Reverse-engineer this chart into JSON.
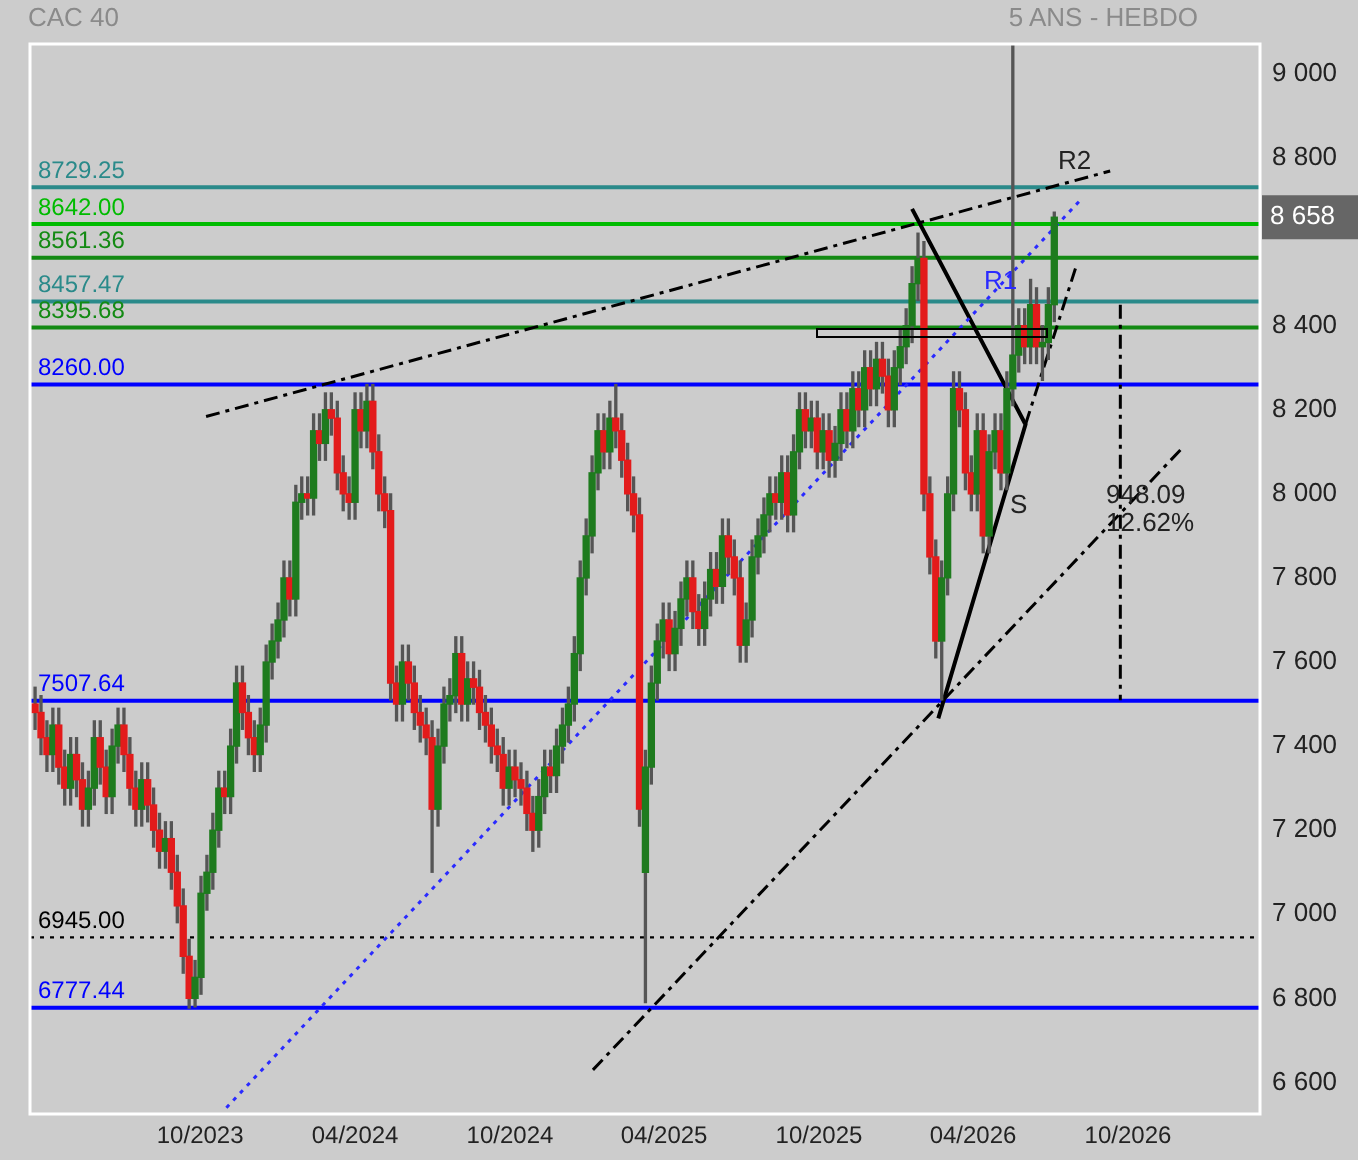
{
  "chart_data": {
    "type": "candlestick",
    "title": "CAC 40",
    "subtitle": "5 ANS - HEBDO",
    "xlim": [
      "2023-03-14",
      "2027-03-06"
    ],
    "xticks": [
      {
        "value": "2023-10",
        "label": "10/2023"
      },
      {
        "value": "2024-04",
        "label": "04/2024"
      },
      {
        "value": "2024-10",
        "label": "10/2024"
      },
      {
        "value": "2025-04",
        "label": "04/2025"
      },
      {
        "value": "2025-10",
        "label": "10/2025"
      },
      {
        "value": "2026-04",
        "label": "04/2026"
      },
      {
        "value": "2026-10",
        "label": "10/2026"
      }
    ],
    "ylim": [
      6525,
      9070
    ],
    "yticks": [
      {
        "value": 6600,
        "label": "6 600"
      },
      {
        "value": 6800,
        "label": "6 800"
      },
      {
        "value": 7000,
        "label": "7 000"
      },
      {
        "value": 7200,
        "label": "7 200"
      },
      {
        "value": 7400,
        "label": "7 400"
      },
      {
        "value": 7600,
        "label": "7 600"
      },
      {
        "value": 7800,
        "label": "7 800"
      },
      {
        "value": 8000,
        "label": "8 000"
      },
      {
        "value": 8200,
        "label": "8 200"
      },
      {
        "value": 8400,
        "label": "8 400"
      },
      {
        "value": 8800,
        "label": "8 800"
      },
      {
        "value": 9000,
        "label": "9 000"
      }
    ],
    "series": [
      {
        "type": "candlestick",
        "x": [
          "2023-03-20",
          "2023-03-27",
          "2023-04-03",
          "2023-04-10",
          "2023-04-17",
          "2023-04-24",
          "2023-05-01",
          "2023-05-08",
          "2023-05-15",
          "2023-05-22",
          "2023-05-29",
          "2023-06-05",
          "2023-06-12",
          "2023-06-19",
          "2023-06-26",
          "2023-07-03",
          "2023-07-10",
          "2023-07-17",
          "2023-07-24",
          "2023-07-31",
          "2023-08-07",
          "2023-08-14",
          "2023-08-21",
          "2023-08-28",
          "2023-09-04",
          "2023-09-11",
          "2023-09-18",
          "2023-09-25",
          "2023-10-02",
          "2023-10-09",
          "2023-10-16",
          "2023-10-23",
          "2023-10-30",
          "2023-11-06",
          "2023-11-13",
          "2023-11-20",
          "2023-11-27",
          "2023-12-04",
          "2023-12-11",
          "2023-12-18",
          "2023-12-25",
          "2024-01-01",
          "2024-01-08",
          "2024-01-15",
          "2024-01-22",
          "2024-01-29",
          "2024-02-05",
          "2024-02-12",
          "2024-02-19",
          "2024-02-26",
          "2024-03-04",
          "2024-03-11",
          "2024-03-18",
          "2024-03-25",
          "2024-04-01",
          "2024-04-08",
          "2024-04-15",
          "2024-04-22",
          "2024-04-29",
          "2024-05-06",
          "2024-05-13",
          "2024-05-20",
          "2024-05-27",
          "2024-06-03",
          "2024-06-10",
          "2024-06-17",
          "2024-06-24",
          "2024-07-01",
          "2024-07-08",
          "2024-07-15",
          "2024-07-22",
          "2024-07-29",
          "2024-08-05",
          "2024-08-12",
          "2024-08-19",
          "2024-08-26",
          "2024-09-02",
          "2024-09-09",
          "2024-09-16",
          "2024-09-23",
          "2024-09-30",
          "2024-10-07",
          "2024-10-14",
          "2024-10-21",
          "2024-10-28",
          "2024-11-04",
          "2024-11-11",
          "2024-11-18",
          "2024-11-25",
          "2024-12-02",
          "2024-12-09",
          "2024-12-16",
          "2024-12-23",
          "2024-12-30",
          "2025-01-06",
          "2025-01-13",
          "2025-01-20",
          "2025-01-27",
          "2025-02-03",
          "2025-02-10",
          "2025-02-17",
          "2025-02-24",
          "2025-03-03",
          "2025-03-10",
          "2025-03-17",
          "2025-03-24",
          "2025-03-31",
          "2025-04-07",
          "2025-04-14",
          "2025-04-21",
          "2025-04-28",
          "2025-05-05",
          "2025-05-12",
          "2025-05-19",
          "2025-05-26",
          "2025-06-02",
          "2025-06-09",
          "2025-06-16",
          "2025-06-23",
          "2025-06-30",
          "2025-07-07",
          "2025-07-14",
          "2025-07-21",
          "2025-07-28",
          "2025-08-04",
          "2025-08-11",
          "2025-08-18",
          "2025-08-25",
          "2025-09-01",
          "2025-09-08",
          "2025-09-15",
          "2025-09-22",
          "2025-09-29",
          "2025-10-06",
          "2025-10-13",
          "2025-10-20",
          "2025-10-27",
          "2025-11-03",
          "2025-11-10",
          "2025-11-17",
          "2025-11-24",
          "2025-12-01",
          "2025-12-08",
          "2025-12-15",
          "2025-12-22",
          "2025-12-29",
          "2026-01-05",
          "2026-01-12",
          "2026-01-19",
          "2026-01-26",
          "2026-02-02",
          "2026-02-09",
          "2026-02-16",
          "2026-02-23",
          "2026-03-02",
          "2026-03-09",
          "2026-03-16",
          "2026-03-23",
          "2026-03-30",
          "2026-04-06",
          "2026-04-13",
          "2026-04-20",
          "2026-04-27",
          "2026-05-04",
          "2026-05-11",
          "2026-05-18",
          "2026-05-25",
          "2026-06-01",
          "2026-06-08",
          "2026-06-15",
          "2026-06-22",
          "2026-06-29",
          "2026-07-06"
        ],
        "ohlc": [
          [
            7500,
            7540,
            7440,
            7480
          ],
          [
            7480,
            7520,
            7380,
            7420
          ],
          [
            7420,
            7460,
            7340,
            7380
          ],
          [
            7380,
            7490,
            7340,
            7450
          ],
          [
            7450,
            7490,
            7310,
            7350
          ],
          [
            7350,
            7390,
            7260,
            7300
          ],
          [
            7300,
            7420,
            7260,
            7380
          ],
          [
            7380,
            7420,
            7280,
            7320
          ],
          [
            7320,
            7360,
            7210,
            7250
          ],
          [
            7250,
            7340,
            7210,
            7300
          ],
          [
            7300,
            7460,
            7260,
            7420
          ],
          [
            7420,
            7460,
            7310,
            7350
          ],
          [
            7350,
            7390,
            7240,
            7280
          ],
          [
            7280,
            7440,
            7240,
            7400
          ],
          [
            7400,
            7490,
            7360,
            7450
          ],
          [
            7450,
            7490,
            7340,
            7380
          ],
          [
            7380,
            7420,
            7260,
            7300
          ],
          [
            7300,
            7340,
            7210,
            7250
          ],
          [
            7250,
            7360,
            7210,
            7320
          ],
          [
            7320,
            7360,
            7220,
            7260
          ],
          [
            7260,
            7300,
            7160,
            7200
          ],
          [
            7200,
            7240,
            7110,
            7150
          ],
          [
            7150,
            7220,
            7110,
            7180
          ],
          [
            7180,
            7220,
            7060,
            7100
          ],
          [
            7100,
            7140,
            6980,
            7020
          ],
          [
            7020,
            7060,
            6860,
            6900
          ],
          [
            6900,
            6940,
            6777,
            6800
          ],
          [
            6800,
            6890,
            6780,
            6850
          ],
          [
            6850,
            7090,
            6810,
            7050
          ],
          [
            7050,
            7140,
            7010,
            7100
          ],
          [
            7100,
            7240,
            7060,
            7200
          ],
          [
            7200,
            7340,
            7160,
            7300
          ],
          [
            7300,
            7340,
            7240,
            7280
          ],
          [
            7280,
            7440,
            7240,
            7400
          ],
          [
            7400,
            7590,
            7360,
            7550
          ],
          [
            7550,
            7590,
            7440,
            7480
          ],
          [
            7480,
            7520,
            7380,
            7420
          ],
          [
            7420,
            7460,
            7340,
            7380
          ],
          [
            7380,
            7490,
            7340,
            7450
          ],
          [
            7450,
            7640,
            7410,
            7600
          ],
          [
            7600,
            7690,
            7560,
            7650
          ],
          [
            7650,
            7740,
            7610,
            7700
          ],
          [
            7700,
            7840,
            7660,
            7800
          ],
          [
            7800,
            7840,
            7710,
            7750
          ],
          [
            7750,
            8020,
            7710,
            7980
          ],
          [
            7980,
            8040,
            7940,
            8000
          ],
          [
            8000,
            8040,
            7950,
            7990
          ],
          [
            7990,
            8190,
            7950,
            8150
          ],
          [
            8150,
            8190,
            8080,
            8120
          ],
          [
            8120,
            8240,
            8080,
            8200
          ],
          [
            8200,
            8240,
            8140,
            8180
          ],
          [
            8180,
            8220,
            8010,
            8050
          ],
          [
            8050,
            8090,
            7960,
            8000
          ],
          [
            8000,
            8040,
            7940,
            7980
          ],
          [
            7980,
            8240,
            7940,
            8200
          ],
          [
            8200,
            8240,
            8110,
            8150
          ],
          [
            8150,
            8260,
            8110,
            8220
          ],
          [
            8220,
            8260,
            8060,
            8100
          ],
          [
            8100,
            8140,
            7960,
            8000
          ],
          [
            8000,
            8040,
            7920,
            7960
          ],
          [
            7960,
            8000,
            7510,
            7550
          ],
          [
            7550,
            7590,
            7460,
            7500
          ],
          [
            7500,
            7640,
            7460,
            7600
          ],
          [
            7600,
            7640,
            7510,
            7550
          ],
          [
            7550,
            7590,
            7440,
            7480
          ],
          [
            7480,
            7520,
            7410,
            7450
          ],
          [
            7450,
            7490,
            7380,
            7420
          ],
          [
            7420,
            7460,
            7100,
            7250
          ],
          [
            7250,
            7440,
            7210,
            7400
          ],
          [
            7400,
            7540,
            7360,
            7500
          ],
          [
            7500,
            7560,
            7460,
            7520
          ],
          [
            7520,
            7660,
            7480,
            7620
          ],
          [
            7620,
            7660,
            7460,
            7500
          ],
          [
            7500,
            7600,
            7460,
            7560
          ],
          [
            7560,
            7600,
            7500,
            7540
          ],
          [
            7540,
            7580,
            7440,
            7480
          ],
          [
            7480,
            7520,
            7410,
            7450
          ],
          [
            7450,
            7490,
            7360,
            7400
          ],
          [
            7400,
            7440,
            7340,
            7380
          ],
          [
            7380,
            7420,
            7260,
            7300
          ],
          [
            7300,
            7390,
            7260,
            7350
          ],
          [
            7350,
            7390,
            7280,
            7320
          ],
          [
            7320,
            7360,
            7260,
            7300
          ],
          [
            7300,
            7340,
            7200,
            7240
          ],
          [
            7240,
            7280,
            7150,
            7200
          ],
          [
            7200,
            7320,
            7160,
            7280
          ],
          [
            7280,
            7390,
            7240,
            7350
          ],
          [
            7350,
            7390,
            7290,
            7330
          ],
          [
            7330,
            7440,
            7290,
            7400
          ],
          [
            7400,
            7490,
            7360,
            7450
          ],
          [
            7450,
            7540,
            7410,
            7500
          ],
          [
            7500,
            7660,
            7460,
            7620
          ],
          [
            7620,
            7840,
            7580,
            7800
          ],
          [
            7800,
            7940,
            7760,
            7900
          ],
          [
            7900,
            8090,
            7860,
            8050
          ],
          [
            8050,
            8190,
            8010,
            8150
          ],
          [
            8150,
            8190,
            8060,
            8100
          ],
          [
            8100,
            8220,
            8060,
            8180
          ],
          [
            8180,
            8260,
            8110,
            8150
          ],
          [
            8150,
            8190,
            8040,
            8080
          ],
          [
            8080,
            8120,
            7960,
            8000
          ],
          [
            8000,
            8040,
            7910,
            7950
          ],
          [
            7950,
            7990,
            7210,
            7250
          ],
          [
            7100,
            7390,
            6790,
            7350
          ],
          [
            7350,
            7590,
            7310,
            7550
          ],
          [
            7550,
            7690,
            7510,
            7650
          ],
          [
            7650,
            7740,
            7610,
            7700
          ],
          [
            7700,
            7740,
            7580,
            7620
          ],
          [
            7620,
            7720,
            7580,
            7680
          ],
          [
            7680,
            7790,
            7640,
            7750
          ],
          [
            7750,
            7840,
            7710,
            7800
          ],
          [
            7800,
            7840,
            7680,
            7720
          ],
          [
            7720,
            7760,
            7640,
            7680
          ],
          [
            7680,
            7790,
            7640,
            7750
          ],
          [
            7750,
            7860,
            7710,
            7820
          ],
          [
            7820,
            7860,
            7740,
            7780
          ],
          [
            7780,
            7940,
            7740,
            7900
          ],
          [
            7900,
            7940,
            7810,
            7850
          ],
          [
            7850,
            7890,
            7760,
            7800
          ],
          [
            7800,
            7840,
            7600,
            7640
          ],
          [
            7640,
            7740,
            7600,
            7700
          ],
          [
            7700,
            7890,
            7660,
            7850
          ],
          [
            7850,
            7940,
            7810,
            7900
          ],
          [
            7900,
            7990,
            7860,
            7950
          ],
          [
            7950,
            8040,
            7910,
            8000
          ],
          [
            8000,
            8040,
            7940,
            7980
          ],
          [
            7980,
            8090,
            7940,
            8050
          ],
          [
            8050,
            8090,
            7910,
            7950
          ],
          [
            7950,
            8140,
            7910,
            8100
          ],
          [
            8100,
            8240,
            8060,
            8200
          ],
          [
            8200,
            8240,
            8110,
            8150
          ],
          [
            8150,
            8220,
            8110,
            8180
          ],
          [
            8180,
            8220,
            8060,
            8100
          ],
          [
            8100,
            8190,
            8060,
            8150
          ],
          [
            8150,
            8190,
            8040,
            8080
          ],
          [
            8080,
            8160,
            8040,
            8120
          ],
          [
            8120,
            8240,
            8080,
            8200
          ],
          [
            8200,
            8240,
            8110,
            8150
          ],
          [
            8150,
            8290,
            8110,
            8250
          ],
          [
            8250,
            8290,
            8160,
            8200
          ],
          [
            8200,
            8340,
            8160,
            8300
          ],
          [
            8300,
            8340,
            8210,
            8250
          ],
          [
            8250,
            8360,
            8210,
            8320
          ],
          [
            8320,
            8360,
            8240,
            8280
          ],
          [
            8280,
            8320,
            8160,
            8200
          ],
          [
            8200,
            8340,
            8160,
            8300
          ],
          [
            8300,
            8390,
            8260,
            8350
          ],
          [
            8350,
            8440,
            8310,
            8400
          ],
          [
            8400,
            8540,
            8360,
            8500
          ],
          [
            8500,
            8620,
            8460,
            8560
          ],
          [
            8560,
            8600,
            7960,
            8000
          ],
          [
            8000,
            8040,
            7810,
            7850
          ],
          [
            7850,
            7890,
            7610,
            7650
          ],
          [
            7650,
            7840,
            7510,
            7800
          ],
          [
            7800,
            8040,
            7760,
            8000
          ],
          [
            8000,
            8290,
            7960,
            8250
          ],
          [
            8250,
            8290,
            8160,
            8200
          ],
          [
            8200,
            8240,
            8010,
            8050
          ],
          [
            8050,
            8090,
            7960,
            8000
          ],
          [
            8000,
            8190,
            7960,
            8150
          ],
          [
            8150,
            8190,
            7860,
            7900
          ],
          [
            7900,
            8140,
            7860,
            8100
          ],
          [
            8100,
            8190,
            8060,
            8150
          ],
          [
            8150,
            8190,
            8010,
            8050
          ],
          [
            8050,
            8290,
            8010,
            8250
          ],
          [
            8250,
            9070,
            8210,
            8330
          ],
          [
            8330,
            8440,
            8290,
            8400
          ],
          [
            8400,
            8440,
            8310,
            8350
          ],
          [
            8350,
            8510,
            8310,
            8450
          ],
          [
            8450,
            8490,
            8310,
            8350
          ],
          [
            8350,
            8400,
            8270,
            8360
          ],
          [
            8360,
            8490,
            8320,
            8450
          ],
          [
            8450,
            8670,
            8410,
            8658
          ]
        ],
        "colors": [
          "#e31b1b",
          "#e31b1b",
          "#e31b1b",
          "#1e7b1e",
          "#e31b1b",
          "#e31b1b",
          "#1e7b1e",
          "#e31b1b",
          "#e31b1b",
          "#1e7b1e",
          "#1e7b1e",
          "#e31b1b",
          "#e31b1b",
          "#1e7b1e",
          "#1e7b1e",
          "#e31b1b",
          "#e31b1b",
          "#e31b1b",
          "#1e7b1e",
          "#e31b1b",
          "#e31b1b",
          "#e31b1b",
          "#1e7b1e",
          "#e31b1b",
          "#e31b1b",
          "#e31b1b",
          "#e31b1b",
          "#1e7b1e",
          "#1e7b1e",
          "#1e7b1e",
          "#1e7b1e",
          "#1e7b1e",
          "#e31b1b",
          "#1e7b1e",
          "#1e7b1e",
          "#e31b1b",
          "#e31b1b",
          "#e31b1b",
          "#1e7b1e",
          "#1e7b1e",
          "#1e7b1e",
          "#1e7b1e",
          "#1e7b1e",
          "#e31b1b",
          "#1e7b1e",
          "#1e7b1e",
          "#e31b1b",
          "#1e7b1e",
          "#e31b1b",
          "#1e7b1e",
          "#e31b1b",
          "#e31b1b",
          "#e31b1b",
          "#e31b1b",
          "#1e7b1e",
          "#e31b1b",
          "#1e7b1e",
          "#e31b1b",
          "#e31b1b",
          "#e31b1b",
          "#e31b1b",
          "#e31b1b",
          "#1e7b1e",
          "#e31b1b",
          "#e31b1b",
          "#e31b1b",
          "#e31b1b",
          "#e31b1b",
          "#1e7b1e",
          "#1e7b1e",
          "#1e7b1e",
          "#1e7b1e",
          "#e31b1b",
          "#1e7b1e",
          "#e31b1b",
          "#e31b1b",
          "#e31b1b",
          "#e31b1b",
          "#e31b1b",
          "#e31b1b",
          "#1e7b1e",
          "#e31b1b",
          "#e31b1b",
          "#e31b1b",
          "#e31b1b",
          "#1e7b1e",
          "#1e7b1e",
          "#e31b1b",
          "#1e7b1e",
          "#1e7b1e",
          "#1e7b1e",
          "#1e7b1e",
          "#1e7b1e",
          "#1e7b1e",
          "#1e7b1e",
          "#1e7b1e",
          "#e31b1b",
          "#1e7b1e",
          "#e31b1b",
          "#e31b1b",
          "#e31b1b",
          "#e31b1b",
          "#e31b1b",
          "#1e7b1e",
          "#1e7b1e",
          "#1e7b1e",
          "#1e7b1e",
          "#e31b1b",
          "#1e7b1e",
          "#1e7b1e",
          "#1e7b1e",
          "#e31b1b",
          "#e31b1b",
          "#1e7b1e",
          "#1e7b1e",
          "#e31b1b",
          "#1e7b1e",
          "#e31b1b",
          "#e31b1b",
          "#e31b1b",
          "#1e7b1e",
          "#1e7b1e",
          "#1e7b1e",
          "#1e7b1e",
          "#1e7b1e",
          "#e31b1b",
          "#1e7b1e",
          "#e31b1b",
          "#1e7b1e",
          "#1e7b1e",
          "#e31b1b",
          "#1e7b1e",
          "#e31b1b",
          "#1e7b1e",
          "#e31b1b",
          "#1e7b1e",
          "#1e7b1e",
          "#e31b1b",
          "#1e7b1e",
          "#e31b1b",
          "#1e7b1e",
          "#e31b1b",
          "#1e7b1e",
          "#e31b1b",
          "#e31b1b",
          "#1e7b1e",
          "#1e7b1e",
          "#1e7b1e",
          "#1e7b1e",
          "#1e7b1e",
          "#e31b1b",
          "#e31b1b",
          "#e31b1b",
          "#1e7b1e",
          "#1e7b1e",
          "#1e7b1e",
          "#e31b1b",
          "#e31b1b",
          "#e31b1b",
          "#1e7b1e",
          "#e31b1b",
          "#1e7b1e",
          "#1e7b1e",
          "#e31b1b",
          "#1e7b1e",
          "#1e7b1e",
          "#1e7b1e",
          "#e31b1b",
          "#1e7b1e",
          "#e31b1b",
          "#1e7b1e",
          "#1e7b1e",
          "#1e7b1e"
        ]
      },
      {
        "type": "line",
        "x": [
          "2023-10-08",
          "2026-09-10"
        ],
        "values": [
          8184,
          8768
        ],
        "color": "#000000",
        "line_style": "dashed"
      },
      {
        "type": "line",
        "x": [
          "2025-01-07",
          "2026-12-06"
        ],
        "values": [
          6630,
          8113
        ],
        "color": "#000000",
        "line_style": "dashed"
      },
      {
        "type": "line",
        "x": [
          "2023-11-01",
          "2026-08-05"
        ],
        "values": [
          6540,
          8697
        ],
        "color": "#2a2aff",
        "line_style": "dotted"
      },
      {
        "type": "line",
        "x": [
          "2026-01-19",
          "2026-06-02",
          "2026-02-19"
        ],
        "values": [
          8678,
          8165,
          7466
        ],
        "color": "#000000",
        "line_style": "solid"
      },
      {
        "type": "line",
        "x": [
          "2026-06-02",
          "2026-07-31"
        ],
        "values": [
          8165,
          8536
        ],
        "color": "#000000",
        "line_style": "dashed"
      },
      {
        "type": "line",
        "x": [
          "2026-09-22",
          "2026-09-22"
        ],
        "values": [
          8450,
          7509
        ],
        "color": "#000000",
        "line_style": "dashed"
      }
    ],
    "ref_lines": [
      {
        "axis": "y",
        "value": 8729.25,
        "label": "8729.25",
        "color": "#2a8a8a",
        "line_style": "solid"
      },
      {
        "axis": "y",
        "value": 8642.0,
        "label": "8642.00",
        "color": "#00bb00",
        "line_style": "solid"
      },
      {
        "axis": "y",
        "value": 8561.36,
        "label": "8561.36",
        "color": "#138a13",
        "line_style": "solid"
      },
      {
        "axis": "y",
        "value": 8457.47,
        "label": "8457.47",
        "color": "#2a8a8a",
        "line_style": "solid"
      },
      {
        "axis": "y",
        "value": 8395.68,
        "label": "8395.68",
        "color": "#138a13",
        "line_style": "solid"
      },
      {
        "axis": "y",
        "value": 8260.0,
        "label": "8260.00",
        "color": "#0000ff",
        "line_style": "solid"
      },
      {
        "axis": "y",
        "value": 7507.64,
        "label": "7507.64",
        "color": "#0000ff",
        "line_style": "solid"
      },
      {
        "axis": "y",
        "value": 6945.0,
        "label": "6945.00",
        "color": "#000000",
        "line_style": "dotted"
      },
      {
        "axis": "y",
        "value": 6777.44,
        "label": "6777.44",
        "color": "#0000ff",
        "line_style": "solid"
      }
    ],
    "annotations": [
      "R2",
      "R1",
      "S",
      "948.09",
      "12.62%",
      "8 658"
    ]
  }
}
